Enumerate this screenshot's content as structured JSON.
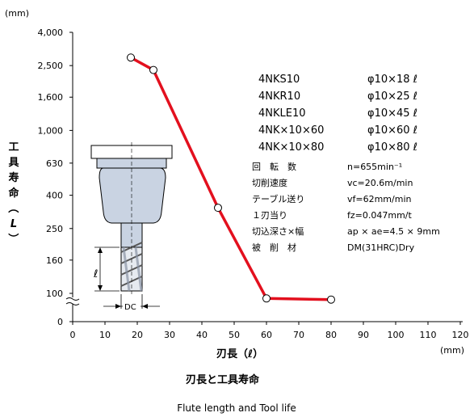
{
  "chart_data": {
    "type": "line",
    "title": "刃長と工具寿命",
    "subtitle": "Flute length and Tool life",
    "xlabel": "刃長（ℓ）",
    "xunit": "(mm)",
    "ylabel": "工具寿命（L）",
    "yunit": "(mm)",
    "x_ticks": [
      "0",
      "10",
      "20",
      "30",
      "40",
      "50",
      "60",
      "70",
      "80",
      "90",
      "100",
      "110",
      "120"
    ],
    "y_ticks": [
      "0",
      "100",
      "160",
      "250",
      "400",
      "630",
      "1,000",
      "1,600",
      "2,500",
      "4,000"
    ],
    "xlim": [
      0,
      120
    ],
    "yscale": "log",
    "axis_break": true,
    "grid": false,
    "series": [
      {
        "color": "#e3101e",
        "x": [
          18,
          25,
          45,
          60,
          80
        ],
        "y": [
          2800,
          2350,
          335,
          82,
          78
        ]
      }
    ],
    "legend": [
      {
        "name": "4NKS10",
        "spec": "φ10×18 ℓ"
      },
      {
        "name": "4NKR10",
        "spec": "φ10×25 ℓ"
      },
      {
        "name": "4NKLE10",
        "spec": "φ10×45 ℓ"
      },
      {
        "name": "4NK×10×60",
        "spec": "φ10×60 ℓ"
      },
      {
        "name": "4NK×10×80",
        "spec": "φ10×80 ℓ"
      }
    ],
    "conditions": [
      {
        "label": "回　転　数",
        "value": "n=655min⁻¹"
      },
      {
        "label": "切削速度",
        "value": "vc=20.6m/min"
      },
      {
        "label": "テーブル送り",
        "value": "vf=62mm/min"
      },
      {
        "label": "１刃当り",
        "value": "fz=0.047mm/t"
      },
      {
        "label": "切込深さ×幅",
        "value": "ap × ae=4.5 × 9mm"
      },
      {
        "label": "被　削　材",
        "value": "DM(31HRC)Dry"
      }
    ],
    "tool_labels": {
      "flute": "ℓ",
      "diameter": "DC"
    }
  }
}
